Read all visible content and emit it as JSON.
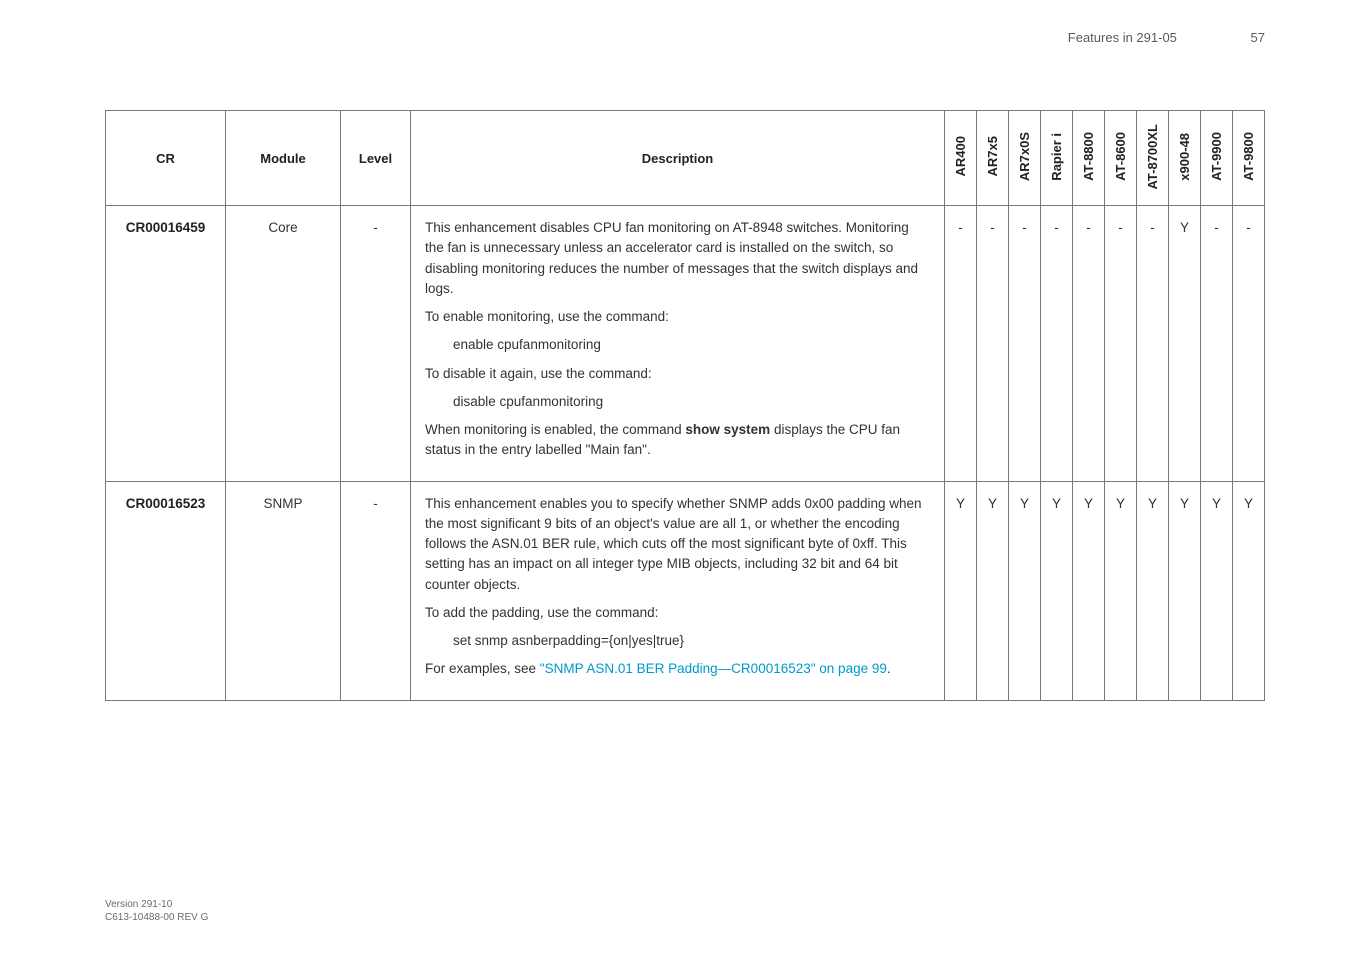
{
  "page": {
    "running_head": "Features in 291-05",
    "page_number": "57",
    "footer_line1": "Version 291-10",
    "footer_line2": "C613-10488-00 REV G"
  },
  "table": {
    "columns": {
      "cr": "CR",
      "module": "Module",
      "level": "Level",
      "description": "Description",
      "flags": [
        "AR400",
        "AR7x5",
        "AR7x0S",
        "Rapier i",
        "AT-8800",
        "AT-8600",
        "AT-8700XL",
        "x900-48",
        "AT-9900",
        "AT-9800"
      ]
    },
    "rows": [
      {
        "cr": "CR00016459",
        "module": "Core",
        "level": "-",
        "description": {
          "p1": "This enhancement disables CPU fan monitoring on AT-8948 switches. Monitoring the fan is unnecessary unless an accelerator card is installed on the switch, so disabling monitoring reduces the number of messages that the switch displays and logs.",
          "p2": "To enable monitoring, use the command:",
          "cmd1": "enable cpufanmonitoring",
          "p3": "To disable it again, use the command:",
          "cmd2": "disable cpufanmonitoring",
          "p4_a": "When monitoring is enabled, the command ",
          "p4_b": "show system",
          "p4_c": " displays the CPU fan status in the entry labelled \"Main fan\"."
        },
        "flags": [
          "-",
          "-",
          "-",
          "-",
          "-",
          "-",
          "-",
          "Y",
          "-",
          "-"
        ]
      },
      {
        "cr": "CR00016523",
        "module": "SNMP",
        "level": "-",
        "description": {
          "p1": "This enhancement enables you to specify whether SNMP adds 0x00 padding when the most significant 9 bits of an object's value are all 1, or whether the encoding follows the ASN.01 BER rule, which cuts off the most significant byte of 0xff. This setting has an impact on all integer type MIB objects, including 32 bit and 64 bit counter objects.",
          "p2": "To add the padding, use the command:",
          "cmd1": "set snmp asnberpadding={on|yes|true}",
          "p3_a": "For examples,  see ",
          "p3_link": "\"SNMP ASN.01 BER Padding—CR00016523\" on page 99",
          "p3_b": "."
        },
        "flags": [
          "Y",
          "Y",
          "Y",
          "Y",
          "Y",
          "Y",
          "Y",
          "Y",
          "Y",
          "Y"
        ]
      }
    ]
  }
}
